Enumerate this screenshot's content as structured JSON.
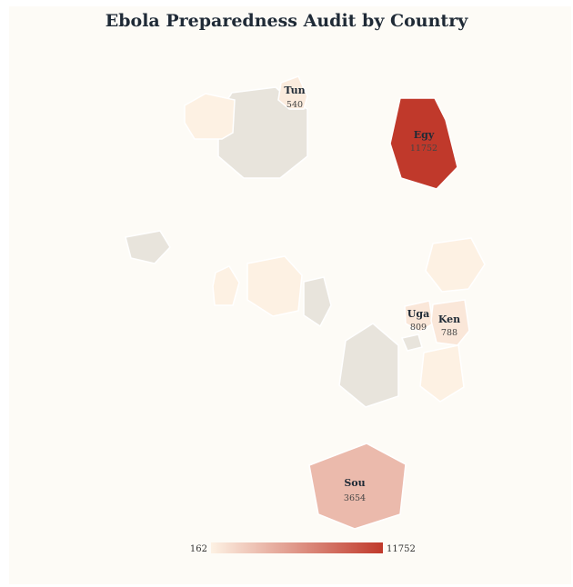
{
  "title": "Ebola Preparedness Audit by Country",
  "colors": {
    "no_data": "#e8e4dc",
    "scale_min": "#fdf1e3",
    "scale_max": "#c0392b",
    "border": "#ffffff"
  },
  "legend": {
    "min_label": "162",
    "max_label": "11752",
    "min": 162,
    "max": 11752
  },
  "countries": [
    {
      "label": "Tun",
      "value": 540,
      "value_label": "540"
    },
    {
      "label": "Egy",
      "value": 11752,
      "value_label": "11752"
    },
    {
      "label": "Uga",
      "value": 809,
      "value_label": "809"
    },
    {
      "label": "Ken",
      "value": 788,
      "value_label": "788"
    },
    {
      "label": "Sou",
      "value": 3654,
      "value_label": "3654"
    }
  ]
}
